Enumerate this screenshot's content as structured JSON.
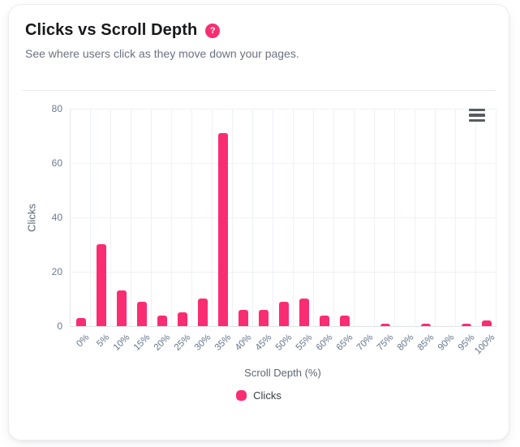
{
  "card": {
    "title": "Clicks vs Scroll Depth",
    "subtitle": "See where users click as they move down your pages.",
    "help_icon_glyph": "?"
  },
  "colors": {
    "accent_pink": "#fa2d73",
    "tick_label": "#64748b",
    "gridline": "#eef1f6"
  },
  "chart_data": {
    "type": "bar",
    "title": "Clicks vs Scroll Depth",
    "categories": [
      "0%",
      "5%",
      "10%",
      "15%",
      "20%",
      "25%",
      "30%",
      "35%",
      "40%",
      "45%",
      "50%",
      "55%",
      "60%",
      "65%",
      "70%",
      "75%",
      "80%",
      "85%",
      "90%",
      "95%",
      "100%"
    ],
    "values": [
      3,
      30,
      13,
      9,
      4,
      5,
      10,
      71,
      6,
      6,
      9,
      10,
      4,
      4,
      0,
      1,
      0,
      1,
      0,
      1,
      2
    ],
    "series_name": "Clicks",
    "xlabel": "Scroll Depth (%)",
    "ylabel": "Clicks",
    "ylim": [
      0,
      80
    ],
    "yticks": [
      0,
      20,
      40,
      60,
      80
    ],
    "grid": true,
    "legend_position": "bottom",
    "bar_color": "#fa2d73"
  },
  "legend": {
    "label": "Clicks"
  },
  "toolbar": {
    "menu_icon": "hamburger-menu"
  }
}
